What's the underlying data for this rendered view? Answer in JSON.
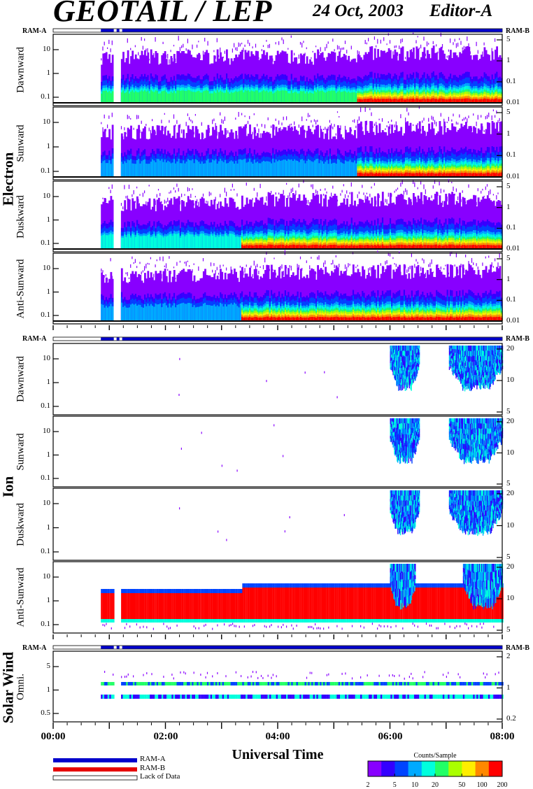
{
  "title": "GEOTAIL / LEP",
  "date": "24 Oct, 2003",
  "editor": "Editor-A",
  "groups": {
    "electron": "Electron",
    "ion": "Ion",
    "solar_wind": "Solar Wind"
  },
  "x_axis": {
    "label": "Universal Time",
    "ticks": [
      "00:00",
      "02:00",
      "04:00",
      "06:00",
      "08:00"
    ],
    "range_hours": [
      0,
      8
    ]
  },
  "ram_labels": {
    "left": "RAM-A",
    "right": "RAM-B"
  },
  "legend": {
    "ram_a": "RAM-A",
    "ram_b": "RAM-B",
    "lack": "Lack of Data"
  },
  "colorbar": {
    "title": "Counts/Sample",
    "ticks": [
      "2",
      "5",
      "10",
      "20",
      "50",
      "100",
      "200"
    ],
    "scale": "log",
    "range": [
      2,
      200
    ]
  },
  "colors": {
    "ram_a": "#0000cc",
    "ram_b": "#e60000",
    "spectrum": [
      "#8800ff",
      "#3300ff",
      "#0044ff",
      "#00aaff",
      "#00ffdd",
      "#22ff66",
      "#aaff00",
      "#ffee00",
      "#ff8800",
      "#ff0000"
    ]
  },
  "panels": [
    {
      "group": "electron",
      "label": "Dawnward",
      "left_ticks": [
        "10",
        "1",
        "0.1"
      ],
      "right_ticks": [
        "5",
        "1",
        "0.1",
        "0.01"
      ]
    },
    {
      "group": "electron",
      "label": "Sunward",
      "left_ticks": [
        "10",
        "1",
        "0.1"
      ],
      "right_ticks": [
        "5",
        "1",
        "0.1",
        "0.01"
      ]
    },
    {
      "group": "electron",
      "label": "Duskward",
      "left_ticks": [
        "10",
        "1",
        "0.1"
      ],
      "right_ticks": [
        "5",
        "1",
        "0.1",
        "0.01"
      ]
    },
    {
      "group": "electron",
      "label": "Anti-Sunward",
      "left_ticks": [
        "10",
        "1",
        "0.1"
      ],
      "right_ticks": [
        "5",
        "1",
        "0.1",
        "0.01"
      ]
    },
    {
      "group": "ion",
      "label": "Dawnward",
      "left_ticks": [
        "10",
        "1",
        "0.1"
      ],
      "right_ticks": [
        "20",
        "10",
        "5"
      ]
    },
    {
      "group": "ion",
      "label": "Sunward",
      "left_ticks": [
        "10",
        "1",
        "0.1"
      ],
      "right_ticks": [
        "20",
        "10",
        "5"
      ]
    },
    {
      "group": "ion",
      "label": "Duskward",
      "left_ticks": [
        "10",
        "1",
        "0.1"
      ],
      "right_ticks": [
        "20",
        "10",
        "5"
      ]
    },
    {
      "group": "ion",
      "label": "Anti-Sunward",
      "left_ticks": [
        "10",
        "1",
        "0.1"
      ],
      "right_ticks": [
        "20",
        "10",
        "5"
      ]
    },
    {
      "group": "solar_wind",
      "label": "Omni.",
      "left_ticks": [
        "5",
        "1",
        "0.5"
      ],
      "right_ticks": [
        "2",
        "1",
        "0.2"
      ]
    }
  ],
  "chart_data": {
    "type": "heatmap",
    "title": "GEOTAIL / LEP",
    "xlabel": "Universal Time",
    "x_range": [
      "00:00",
      "08:00"
    ],
    "colorbar_label": "Counts/Sample",
    "colorbar_range": [
      2,
      200
    ],
    "data_start_ut": "00:50",
    "data_gaps_ut": [
      [
        "01:05",
        "01:12"
      ]
    ],
    "electron": {
      "description_panels": [
        "Dawnward",
        "Sunward",
        "Duskward",
        "Anti-Sunward"
      ],
      "duskward_enhancement_start_ut": "03:20",
      "antisunward_enhancement_start_ut": "03:20",
      "sunward_enhancement_start_ut": "05:25"
    },
    "ion": {
      "dawn_sun_dusk_bursts_ut": [
        [
          "06:00",
          "06:30"
        ],
        [
          "07:05",
          "08:00"
        ]
      ],
      "antisunward_dense_band_ut": [
        "00:50",
        "08:00"
      ]
    },
    "solar_wind": {
      "bands": [
        "upper",
        "lower"
      ]
    }
  }
}
